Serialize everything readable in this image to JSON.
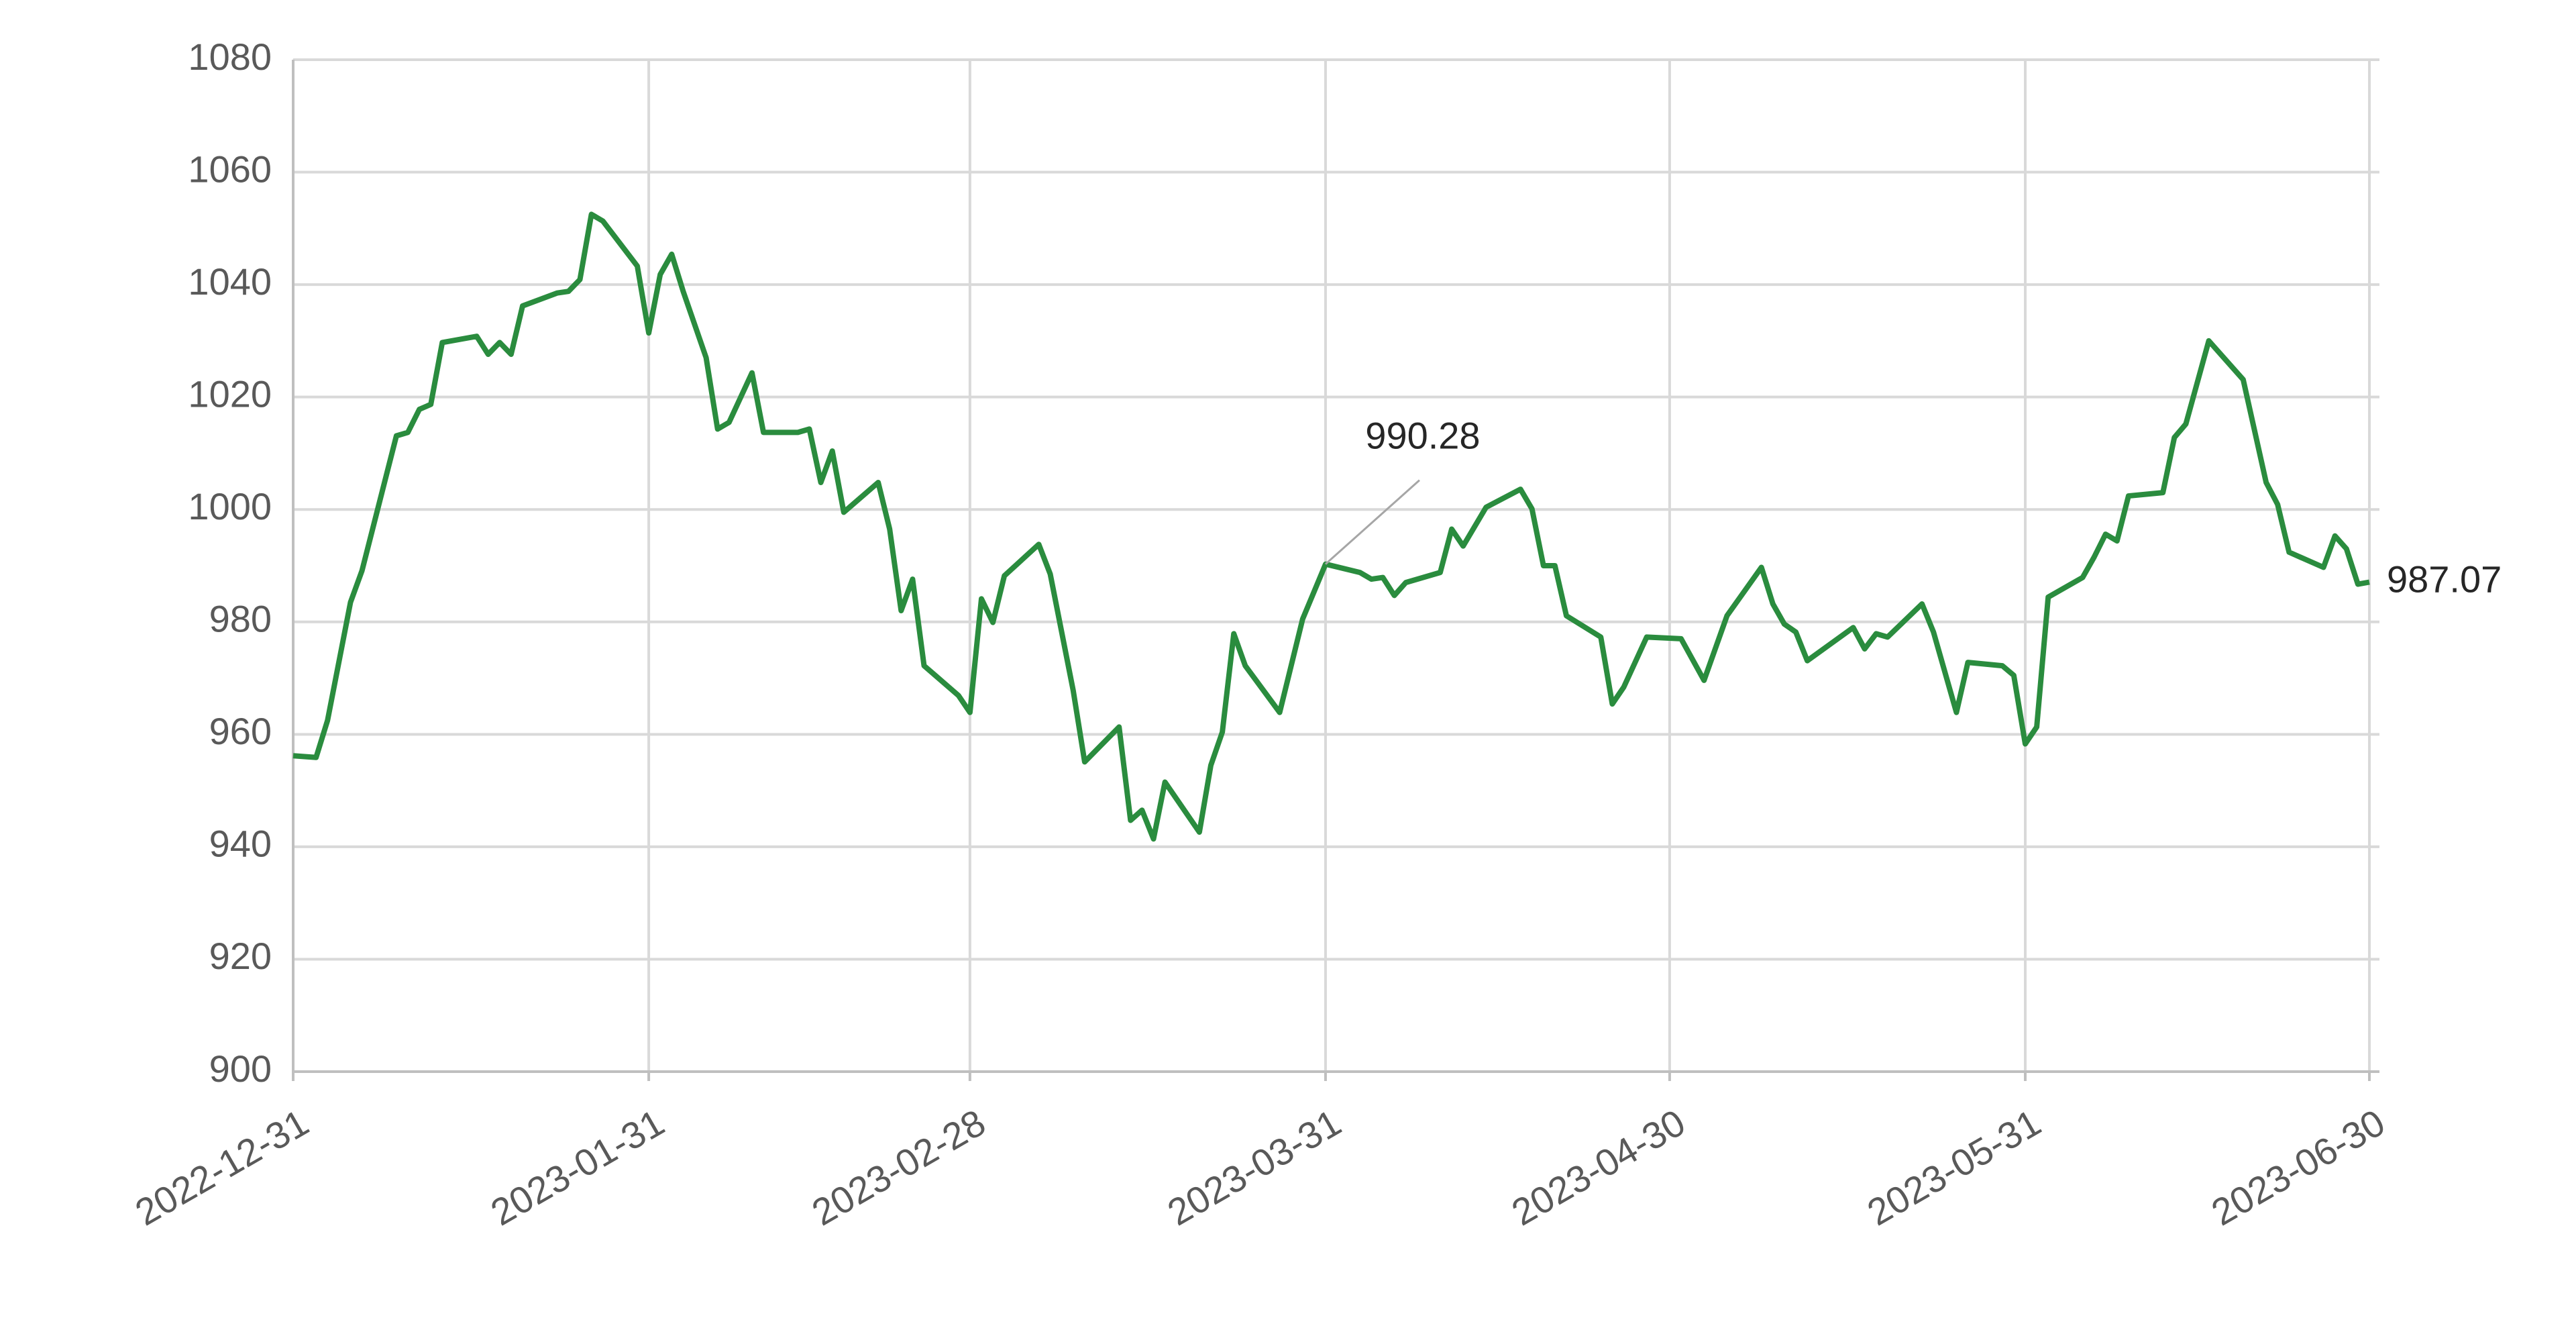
{
  "chart_data": {
    "type": "line",
    "x": [
      "2022-12-31",
      "2023-01-02",
      "2023-01-03",
      "2023-01-05",
      "2023-01-06",
      "2023-01-09",
      "2023-01-10",
      "2023-01-11",
      "2023-01-12",
      "2023-01-13",
      "2023-01-16",
      "2023-01-17",
      "2023-01-18",
      "2023-01-19",
      "2023-01-20",
      "2023-01-23",
      "2023-01-24",
      "2023-01-25",
      "2023-01-26",
      "2023-01-27",
      "2023-01-30",
      "2023-01-31",
      "2023-02-01",
      "2023-02-02",
      "2023-02-03",
      "2023-02-05",
      "2023-02-06",
      "2023-02-07",
      "2023-02-09",
      "2023-02-10",
      "2023-02-13",
      "2023-02-14",
      "2023-02-15",
      "2023-02-16",
      "2023-02-17",
      "2023-02-20",
      "2023-02-21",
      "2023-02-22",
      "2023-02-23",
      "2023-02-24",
      "2023-02-27",
      "2023-02-28",
      "2023-03-01",
      "2023-03-02",
      "2023-03-03",
      "2023-03-06",
      "2023-03-07",
      "2023-03-09",
      "2023-03-10",
      "2023-03-13",
      "2023-03-14",
      "2023-03-15",
      "2023-03-16",
      "2023-03-17",
      "2023-03-20",
      "2023-03-21",
      "2023-03-22",
      "2023-03-23",
      "2023-03-24",
      "2023-03-27",
      "2023-03-29",
      "2023-03-31",
      "2023-04-03",
      "2023-04-04",
      "2023-04-05",
      "2023-04-06",
      "2023-04-07",
      "2023-04-10",
      "2023-04-11",
      "2023-04-12",
      "2023-04-14",
      "2023-04-17",
      "2023-04-18",
      "2023-04-19",
      "2023-04-20",
      "2023-04-21",
      "2023-04-24",
      "2023-04-25",
      "2023-04-26",
      "2023-04-28",
      "2023-05-01",
      "2023-05-03",
      "2023-05-05",
      "2023-05-08",
      "2023-05-09",
      "2023-05-10",
      "2023-05-11",
      "2023-05-12",
      "2023-05-16",
      "2023-05-17",
      "2023-05-18",
      "2023-05-19",
      "2023-05-22",
      "2023-05-23",
      "2023-05-25",
      "2023-05-26",
      "2023-05-29",
      "2023-05-30",
      "2023-05-31",
      "2023-06-01",
      "2023-06-02",
      "2023-06-05",
      "2023-06-06",
      "2023-06-07",
      "2023-06-08",
      "2023-06-09",
      "2023-06-12",
      "2023-06-13",
      "2023-06-14",
      "2023-06-16",
      "2023-06-19",
      "2023-06-21",
      "2023-06-22",
      "2023-06-23",
      "2023-06-26",
      "2023-06-27",
      "2023-06-28",
      "2023-06-29",
      "2023-06-30"
    ],
    "series": [
      {
        "color": "#2a8c3e",
        "values": [
          956.2,
          955.9,
          962.5,
          983.5,
          989.1,
          1013.1,
          1013.7,
          1017.8,
          1018.7,
          1029.7,
          1030.8,
          1027.6,
          1029.7,
          1027.6,
          1036.2,
          1038.5,
          1038.8,
          1040.9,
          1052.5,
          1051.3,
          1043.3,
          1031.4,
          1041.8,
          1045.4,
          1038.8,
          1027.0,
          1014.3,
          1015.5,
          1024.3,
          1013.7,
          1013.7,
          1014.3,
          1004.8,
          1010.4,
          999.5,
          1004.8,
          996.5,
          982.0,
          987.6,
          972.2,
          966.9,
          963.9,
          984.1,
          979.9,
          988.2,
          993.8,
          988.5,
          967.8,
          955.1,
          961.3,
          944.7,
          946.5,
          941.4,
          951.5,
          942.6,
          954.5,
          960.4,
          977.9,
          972.2,
          963.9,
          980.5,
          990.28,
          988.8,
          987.6,
          987.9,
          984.7,
          987.0,
          988.8,
          996.5,
          993.5,
          1000.4,
          1003.6,
          1000.1,
          990.0,
          990.0,
          981.1,
          977.3,
          965.4,
          968.4,
          977.3,
          977.0,
          969.6,
          981.1,
          989.7,
          983.2,
          979.6,
          978.2,
          973.1,
          979.0,
          975.2,
          977.9,
          977.3,
          983.2,
          978.2,
          963.9,
          972.8,
          972.2,
          970.5,
          958.3,
          961.3,
          984.4,
          987.9,
          991.5,
          995.6,
          994.4,
          1002.4,
          1003.0,
          1012.8,
          1015.2,
          1030.0,
          1023.1,
          1004.8,
          1000.9,
          992.4,
          989.7,
          995.3,
          993.0,
          986.7,
          987.07
        ]
      }
    ],
    "labeled_points": [
      61,
      118
    ],
    "xlim": [
      "2022-12-31",
      "2023-06-30"
    ],
    "xticks": [
      "2022-12-31",
      "2023-01-31",
      "2023-02-28",
      "2023-03-31",
      "2023-04-30",
      "2023-05-31",
      "2023-06-30"
    ],
    "ylim": [
      900,
      1080
    ],
    "yticks": [
      900,
      920,
      940,
      960,
      980,
      1000,
      1020,
      1040,
      1060,
      1080
    ],
    "grid": true
  }
}
